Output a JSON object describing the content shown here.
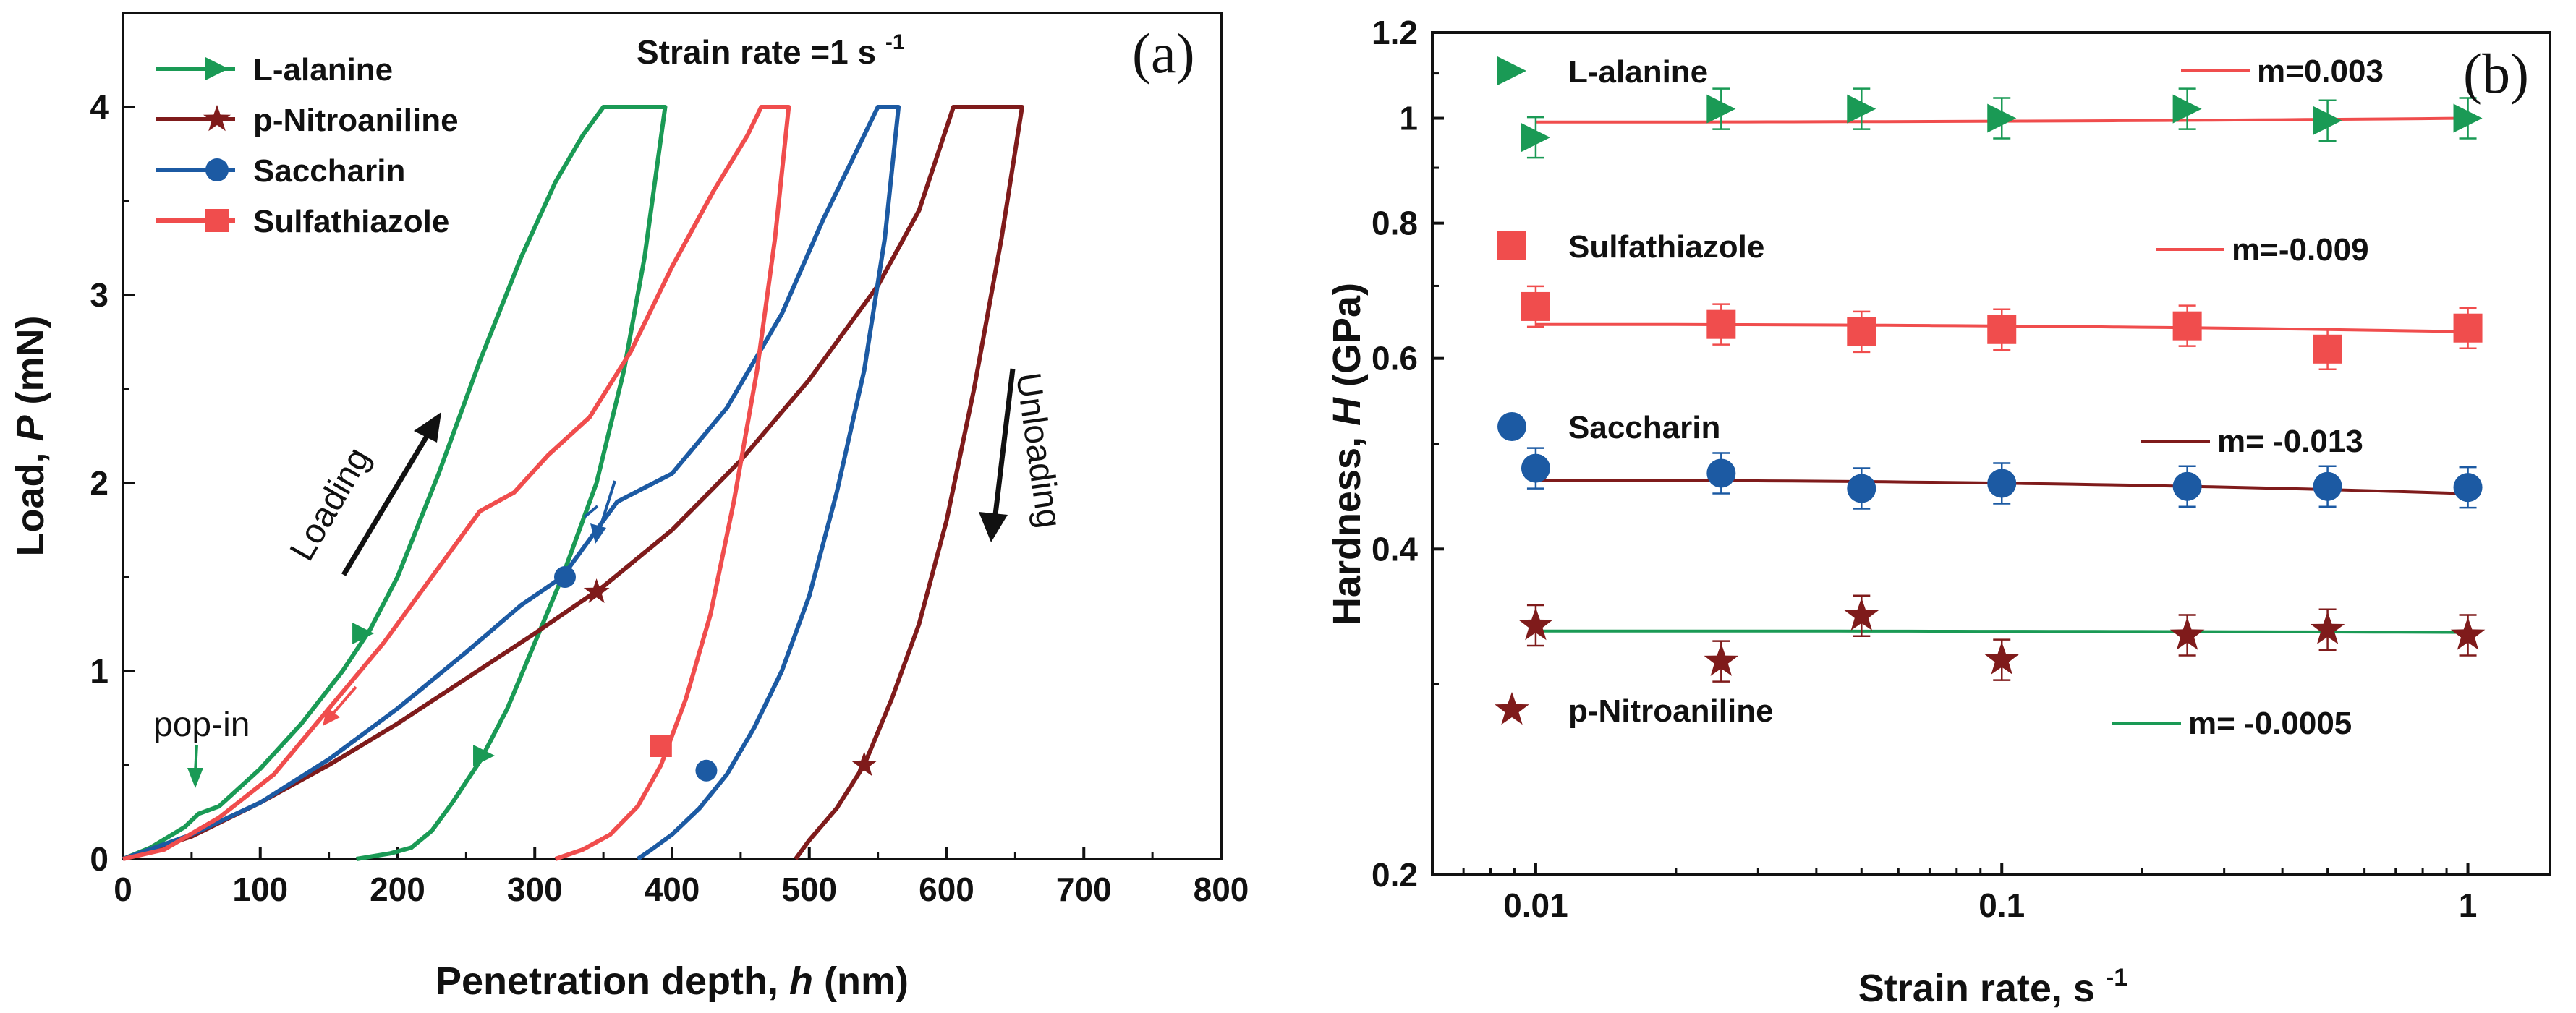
{
  "chart_data": [
    {
      "panel": "(a)",
      "type": "line",
      "title": "Strain rate =1 s-1",
      "title_main": "Strain rate =1 s",
      "title_sup": "-1",
      "xlabel": "Penetration depth, h (nm)",
      "xlabel_parts": [
        "Penetration depth, ",
        "h",
        " (nm)"
      ],
      "ylabel": "Load, P (mN)",
      "ylabel_parts": [
        "Load, ",
        "P",
        " (mN)"
      ],
      "xlim": [
        0,
        800
      ],
      "ylim": [
        0,
        4.5
      ],
      "xticks": [
        0,
        100,
        200,
        300,
        400,
        500,
        600,
        700,
        800
      ],
      "yticks": [
        0,
        1,
        2,
        3,
        4
      ],
      "legend_position": "top-left",
      "annotations": {
        "loading": "Loading",
        "unloading": "Unloading",
        "popin": "pop-in"
      },
      "series": [
        {
          "name": "L-alanine",
          "color": "#1a9a55",
          "marker": "triangle-right",
          "loading": [
            [
              0,
              0
            ],
            [
              20,
              0.06
            ],
            [
              45,
              0.17
            ],
            [
              55,
              0.24
            ],
            [
              70,
              0.28
            ],
            [
              100,
              0.48
            ],
            [
              130,
              0.72
            ],
            [
              160,
              1.0
            ],
            [
              180,
              1.22
            ],
            [
              200,
              1.5
            ],
            [
              230,
              2.05
            ],
            [
              260,
              2.65
            ],
            [
              290,
              3.2
            ],
            [
              315,
              3.6
            ],
            [
              335,
              3.85
            ],
            [
              350,
              4.0
            ],
            [
              395,
              4.0
            ]
          ],
          "unloading": [
            [
              395,
              4.0
            ],
            [
              380,
              3.2
            ],
            [
              365,
              2.6
            ],
            [
              345,
              2.0
            ],
            [
              320,
              1.5
            ],
            [
              300,
              1.15
            ],
            [
              280,
              0.8
            ],
            [
              260,
              0.52
            ],
            [
              240,
              0.3
            ],
            [
              225,
              0.15
            ],
            [
              210,
              0.06
            ],
            [
              195,
              0.03
            ],
            [
              170,
              0.0
            ]
          ],
          "marker_points": [
            [
              175,
              1.2
            ],
            [
              263,
              0.55
            ]
          ]
        },
        {
          "name": "p-Nitroaniline",
          "color": "#7f1b1b",
          "marker": "star",
          "loading": [
            [
              0,
              0
            ],
            [
              50,
              0.12
            ],
            [
              100,
              0.3
            ],
            [
              150,
              0.5
            ],
            [
              200,
              0.72
            ],
            [
              250,
              0.96
            ],
            [
              300,
              1.2
            ],
            [
              350,
              1.45
            ],
            [
              400,
              1.75
            ],
            [
              450,
              2.12
            ],
            [
              500,
              2.55
            ],
            [
              550,
              3.05
            ],
            [
              580,
              3.45
            ],
            [
              605,
              4.0
            ],
            [
              655,
              4.0
            ]
          ],
          "unloading": [
            [
              655,
              4.0
            ],
            [
              640,
              3.3
            ],
            [
              620,
              2.5
            ],
            [
              600,
              1.8
            ],
            [
              580,
              1.25
            ],
            [
              560,
              0.85
            ],
            [
              540,
              0.5
            ],
            [
              520,
              0.27
            ],
            [
              500,
              0.1
            ],
            [
              490,
              0.0
            ]
          ],
          "marker_points": [
            [
              345,
              1.42
            ],
            [
              540,
              0.5
            ]
          ]
        },
        {
          "name": "Saccharin",
          "color": "#1c5aa3",
          "marker": "circle",
          "loading": [
            [
              0,
              0
            ],
            [
              50,
              0.13
            ],
            [
              100,
              0.3
            ],
            [
              150,
              0.53
            ],
            [
              200,
              0.8
            ],
            [
              250,
              1.1
            ],
            [
              290,
              1.35
            ],
            [
              320,
              1.5
            ],
            [
              340,
              1.7
            ],
            [
              360,
              1.9
            ],
            [
              400,
              2.05
            ],
            [
              440,
              2.4
            ],
            [
              480,
              2.9
            ],
            [
              510,
              3.4
            ],
            [
              530,
              3.7
            ],
            [
              550,
              4.0
            ],
            [
              565,
              4.0
            ]
          ],
          "unloading": [
            [
              565,
              4.0
            ],
            [
              555,
              3.3
            ],
            [
              540,
              2.6
            ],
            [
              520,
              1.95
            ],
            [
              500,
              1.4
            ],
            [
              480,
              1.0
            ],
            [
              460,
              0.7
            ],
            [
              440,
              0.45
            ],
            [
              420,
              0.27
            ],
            [
              400,
              0.13
            ],
            [
              385,
              0.05
            ],
            [
              375,
              0.0
            ]
          ],
          "marker_points": [
            [
              322,
              1.5
            ],
            [
              425,
              0.47
            ]
          ]
        },
        {
          "name": "Sulfathiazole",
          "color": "#f04d4d",
          "marker": "square",
          "loading": [
            [
              0,
              0
            ],
            [
              30,
              0.05
            ],
            [
              70,
              0.22
            ],
            [
              110,
              0.45
            ],
            [
              150,
              0.8
            ],
            [
              190,
              1.15
            ],
            [
              230,
              1.55
            ],
            [
              260,
              1.85
            ],
            [
              285,
              1.95
            ],
            [
              310,
              2.15
            ],
            [
              340,
              2.35
            ],
            [
              370,
              2.7
            ],
            [
              400,
              3.15
            ],
            [
              430,
              3.55
            ],
            [
              455,
              3.85
            ],
            [
              465,
              4.0
            ],
            [
              485,
              4.0
            ]
          ],
          "unloading": [
            [
              485,
              4.0
            ],
            [
              475,
              3.3
            ],
            [
              462,
              2.6
            ],
            [
              445,
              1.9
            ],
            [
              428,
              1.3
            ],
            [
              410,
              0.85
            ],
            [
              392,
              0.5
            ],
            [
              375,
              0.28
            ],
            [
              355,
              0.13
            ],
            [
              335,
              0.05
            ],
            [
              315,
              0.0
            ]
          ],
          "marker_points": [
            [
              392,
              0.6
            ]
          ]
        }
      ]
    },
    {
      "panel": "(b)",
      "type": "scatter",
      "xlabel": "Strain rate, s-1",
      "xlabel_main": "Strain rate, s",
      "xlabel_sup": "-1",
      "ylabel": "Hardness, H (GPa)",
      "ylabel_parts": [
        "Hardness, ",
        "H",
        " (GPa)"
      ],
      "xscale": "log",
      "yscale": "log",
      "xlim": [
        0.006,
        1.5
      ],
      "ylim": [
        0.2,
        1.2
      ],
      "xticks": [
        0.01,
        0.1,
        1
      ],
      "xtick_labels": [
        "0.01",
        "0.1",
        "1"
      ],
      "yticks": [
        0.2,
        0.4,
        0.6,
        0.8,
        1,
        1.2
      ],
      "ytick_labels": [
        "0.2",
        "0.4",
        "0.6",
        "0.8",
        "1",
        "1.2"
      ],
      "x": [
        0.01,
        0.025,
        0.05,
        0.1,
        0.25,
        0.5,
        1
      ],
      "series": [
        {
          "name": "L-alanine",
          "color": "#1a9a55",
          "marker": "triangle-right",
          "values": [
            0.96,
            1.02,
            1.02,
            1.0,
            1.02,
            0.995,
            1.0
          ],
          "fit_label": "m=0.003",
          "fit_color": "#f04d4d",
          "fit": [
            0.992,
            1.0
          ]
        },
        {
          "name": "Sulfathiazole",
          "color": "#f04d4d",
          "marker": "square",
          "values": [
            0.67,
            0.645,
            0.635,
            0.638,
            0.643,
            0.612,
            0.64
          ],
          "fit_label": "m=-0.009",
          "fit_color": "#f04d4d",
          "fit": [
            0.645,
            0.635
          ]
        },
        {
          "name": "Saccharin",
          "color": "#1c5aa3",
          "marker": "circle",
          "values": [
            0.475,
            0.47,
            0.455,
            0.46,
            0.457,
            0.457,
            0.456
          ],
          "fit_label": "m= -0.013",
          "fit_color": "#7f1b1b",
          "fit": [
            0.463,
            0.45
          ]
        },
        {
          "name": "p-Nitroaniline",
          "color": "#7f1b1b",
          "marker": "star",
          "values": [
            0.34,
            0.315,
            0.347,
            0.316,
            0.333,
            0.337,
            0.333
          ],
          "fit_label": "m= -0.0005",
          "fit_color": "#1a9a55",
          "fit": [
            0.336,
            0.335
          ]
        }
      ]
    }
  ]
}
